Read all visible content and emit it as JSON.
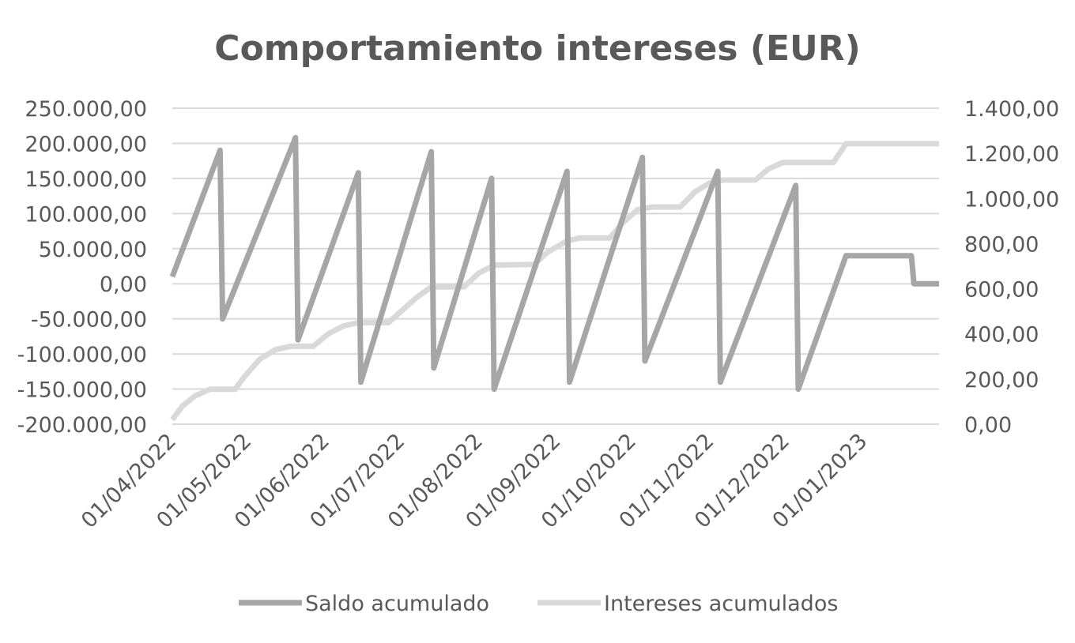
{
  "chart_data": {
    "type": "line",
    "title": "Comportamiento intereses (EUR)",
    "xlabel": "",
    "ylabel": "",
    "y_left": {
      "ticks": [
        "250.000,00",
        "200.000,00",
        "150.000,00",
        "100.000,00",
        "50.000,00",
        "0,00",
        "-50.000,00",
        "-100.000,00",
        "-150.000,00",
        "-200.000,00"
      ],
      "tick_values": [
        250000,
        200000,
        150000,
        100000,
        50000,
        0,
        -50000,
        -100000,
        -150000,
        -200000
      ],
      "ylim": [
        -200000,
        250000
      ]
    },
    "y_right": {
      "ticks": [
        "1.400,00",
        "1.200,00",
        "1.000,00",
        "800,00",
        "600,00",
        "400,00",
        "200,00",
        "0,00"
      ],
      "tick_values": [
        1400,
        1200,
        1000,
        800,
        600,
        400,
        200,
        0
      ],
      "ylim": [
        0,
        1400
      ]
    },
    "x_axis": {
      "tick_labels": [
        "01/04/2022",
        "01/05/2022",
        "01/06/2022",
        "01/07/2022",
        "01/08/2022",
        "01/09/2022",
        "01/10/2022",
        "01/11/2022",
        "01/12/2022",
        "01/01/2023"
      ],
      "tick_dates": [
        "2022-04-01",
        "2022-05-01",
        "2022-06-01",
        "2022-07-01",
        "2022-08-01",
        "2022-09-01",
        "2022-10-01",
        "2022-11-01",
        "2022-12-01",
        "2023-01-01"
      ],
      "xlim": [
        "2022-04-01",
        "2023-01-31"
      ]
    },
    "grid": true,
    "legend_position": "bottom",
    "series": [
      {
        "name": "Saldo acumulado",
        "axis": "left",
        "color": "#a6a6a6",
        "points": [
          [
            "2022-04-01",
            10000
          ],
          [
            "2022-04-20",
            190000
          ],
          [
            "2022-04-21",
            -50000
          ],
          [
            "2022-05-20",
            208000
          ],
          [
            "2022-05-21",
            -80000
          ],
          [
            "2022-06-14",
            158000
          ],
          [
            "2022-06-15",
            -140000
          ],
          [
            "2022-07-13",
            188000
          ],
          [
            "2022-07-14",
            -120000
          ],
          [
            "2022-08-06",
            150000
          ],
          [
            "2022-08-07",
            -150000
          ],
          [
            "2022-09-05",
            160000
          ],
          [
            "2022-09-06",
            -140000
          ],
          [
            "2022-10-05",
            180000
          ],
          [
            "2022-10-06",
            -110000
          ],
          [
            "2022-11-04",
            160000
          ],
          [
            "2022-11-05",
            -140000
          ],
          [
            "2022-12-05",
            140000
          ],
          [
            "2022-12-06",
            -150000
          ],
          [
            "2022-12-25",
            40000
          ],
          [
            "2023-01-20",
            40000
          ],
          [
            "2023-01-21",
            0
          ],
          [
            "2023-01-31",
            0
          ]
        ]
      },
      {
        "name": "Intereses acumulados",
        "axis": "right",
        "color": "#d9d9d9",
        "points": [
          [
            "2022-04-01",
            20
          ],
          [
            "2022-04-05",
            80
          ],
          [
            "2022-04-10",
            125
          ],
          [
            "2022-04-16",
            155
          ],
          [
            "2022-04-26",
            155
          ],
          [
            "2022-04-30",
            215
          ],
          [
            "2022-05-06",
            290
          ],
          [
            "2022-05-12",
            330
          ],
          [
            "2022-05-18",
            345
          ],
          [
            "2022-05-27",
            345
          ],
          [
            "2022-06-02",
            400
          ],
          [
            "2022-06-08",
            435
          ],
          [
            "2022-06-14",
            450
          ],
          [
            "2022-06-26",
            450
          ],
          [
            "2022-07-01",
            500
          ],
          [
            "2022-07-07",
            560
          ],
          [
            "2022-07-13",
            608
          ],
          [
            "2022-07-26",
            608
          ],
          [
            "2022-08-01",
            670
          ],
          [
            "2022-08-07",
            705
          ],
          [
            "2022-08-23",
            708
          ],
          [
            "2022-08-28",
            760
          ],
          [
            "2022-09-05",
            812
          ],
          [
            "2022-09-10",
            825
          ],
          [
            "2022-09-22",
            825
          ],
          [
            "2022-09-27",
            890
          ],
          [
            "2022-10-03",
            950
          ],
          [
            "2022-10-09",
            962
          ],
          [
            "2022-10-20",
            962
          ],
          [
            "2022-10-26",
            1030
          ],
          [
            "2022-11-01",
            1070
          ],
          [
            "2022-11-06",
            1082
          ],
          [
            "2022-11-19",
            1082
          ],
          [
            "2022-11-24",
            1130
          ],
          [
            "2022-11-30",
            1160
          ],
          [
            "2022-12-20",
            1160
          ],
          [
            "2022-12-25",
            1243
          ],
          [
            "2023-01-31",
            1243
          ]
        ]
      }
    ]
  }
}
